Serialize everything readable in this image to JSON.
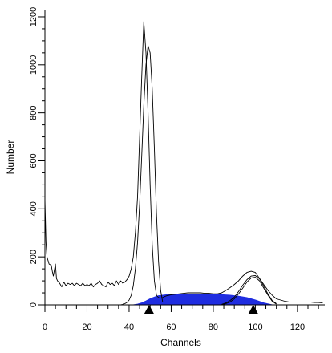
{
  "chart_data": {
    "type": "line",
    "title": "",
    "xlabel": "Channels",
    "ylabel": "Number",
    "xlim": [
      0,
      133
    ],
    "ylim": [
      0,
      1230
    ],
    "x_ticks": [
      0,
      20,
      40,
      60,
      80,
      100,
      120
    ],
    "y_ticks": [
      0,
      200,
      400,
      600,
      800,
      1000,
      1200
    ],
    "grid": false,
    "colors": {
      "fill": "#1f2de0",
      "line": "#000000",
      "axis": "#000000"
    },
    "markers": {
      "shape": "triangle-up",
      "x": [
        49.5,
        99
      ]
    },
    "series": [
      {
        "style": "line",
        "x": [
          0,
          0.5,
          1,
          2,
          3,
          3.5,
          4,
          5,
          5.5,
          6,
          7,
          8,
          9,
          10,
          11,
          12,
          13,
          14,
          15,
          16,
          17,
          18,
          19,
          20,
          21,
          22,
          23,
          24,
          25,
          26,
          27,
          28,
          29,
          30,
          31,
          32,
          33,
          34,
          35,
          36,
          37,
          38,
          39,
          40,
          41,
          42,
          43,
          44,
          45,
          46,
          47,
          48,
          49,
          50,
          51,
          52,
          53,
          54,
          55,
          56,
          57,
          58,
          59,
          60,
          62,
          64,
          66,
          68,
          70,
          72,
          74,
          76,
          78,
          80,
          82,
          84,
          86,
          88,
          90,
          92,
          94,
          96,
          98,
          100,
          102,
          104,
          106,
          108,
          110,
          112,
          114,
          116,
          118,
          120,
          122,
          124,
          126,
          128,
          130,
          132
        ],
        "y": [
          440,
          260,
          200,
          170,
          165,
          140,
          120,
          170,
          110,
          100,
          90,
          75,
          95,
          80,
          90,
          85,
          90,
          80,
          90,
          85,
          80,
          90,
          80,
          85,
          80,
          90,
          75,
          85,
          90,
          100,
          85,
          80,
          75,
          95,
          85,
          90,
          80,
          100,
          85,
          100,
          90,
          95,
          105,
          120,
          150,
          200,
          300,
          450,
          700,
          950,
          1180,
          1050,
          800,
          500,
          250,
          100,
          40,
          30,
          28,
          30,
          35,
          38,
          40,
          42,
          44,
          46,
          48,
          50,
          50,
          50,
          50,
          48,
          48,
          46,
          46,
          50,
          60,
          72,
          85,
          100,
          120,
          135,
          140,
          135,
          110,
          85,
          60,
          40,
          25,
          20,
          15,
          12,
          12,
          12,
          12,
          12,
          12,
          10,
          10,
          8
        ]
      },
      {
        "style": "line",
        "x": [
          36,
          37,
          38,
          39,
          40,
          41,
          42,
          43,
          44,
          45,
          46,
          47,
          48,
          49,
          50,
          51,
          52,
          53,
          54,
          55,
          56
        ],
        "y": [
          0,
          2,
          5,
          10,
          20,
          40,
          80,
          150,
          260,
          420,
          620,
          830,
          1000,
          1080,
          1050,
          900,
          650,
          380,
          180,
          60,
          10
        ]
      },
      {
        "style": "line",
        "x": [
          84,
          86,
          88,
          90,
          92,
          94,
          96,
          98,
          100,
          102,
          104,
          106,
          108,
          110
        ],
        "y": [
          0,
          5,
          12,
          25,
          45,
          70,
          95,
          112,
          115,
          100,
          70,
          40,
          15,
          3
        ]
      },
      {
        "style": "line",
        "x": [
          84,
          86,
          88,
          90,
          92,
          94,
          96,
          98,
          100,
          102,
          104,
          106,
          108,
          110
        ],
        "y": [
          2,
          8,
          18,
          32,
          55,
          82,
          105,
          120,
          122,
          108,
          78,
          45,
          18,
          5
        ]
      },
      {
        "style": "area",
        "x": [
          42,
          44,
          46,
          48,
          50,
          52,
          54,
          56,
          58,
          60,
          64,
          68,
          72,
          76,
          80,
          84,
          88,
          92,
          96,
          100,
          104,
          108
        ],
        "y": [
          0,
          3,
          8,
          16,
          25,
          32,
          38,
          40,
          42,
          43,
          44,
          45,
          45,
          44,
          43,
          42,
          40,
          36,
          30,
          20,
          8,
          0
        ]
      }
    ]
  }
}
